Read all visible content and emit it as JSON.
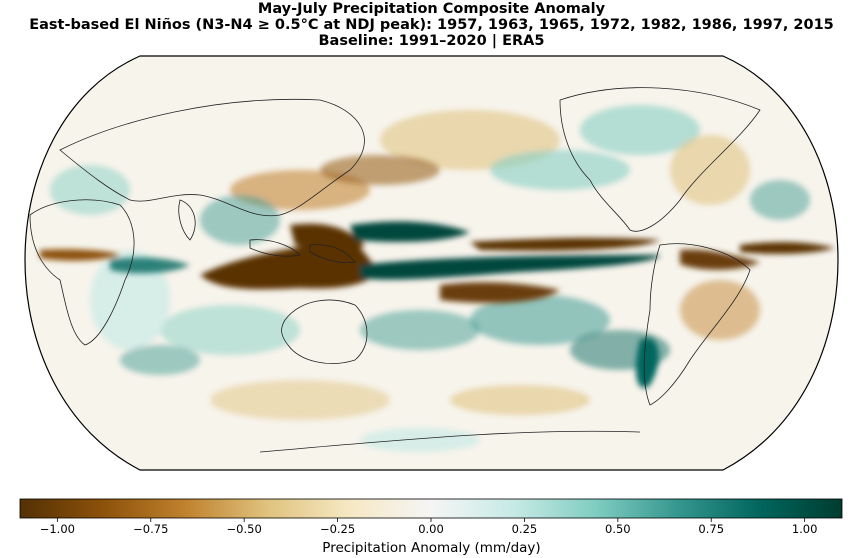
{
  "title": {
    "line1": "May-July Precipitation Composite Anomaly",
    "line2": "East-based El Niños (N3-N4 ≥ 0.5°C at NDJ peak): 1957, 1963, 1965, 1972, 1982, 1986, 1997, 2015",
    "line3": "Baseline: 1991–2020 | ERA5"
  },
  "colorbar": {
    "label": "Precipitation Anomaly (mm/day)",
    "range": [
      -1.1,
      1.1
    ],
    "ticks": [
      "−1.00",
      "−0.75",
      "−0.50",
      "−0.25",
      "0.00",
      "0.25",
      "0.50",
      "0.75",
      "1.00"
    ],
    "tick_values": [
      -1.0,
      -0.75,
      -0.5,
      -0.25,
      0.0,
      0.25,
      0.5,
      0.75,
      1.0
    ],
    "colormap": [
      "#543005",
      "#8c510a",
      "#bf812d",
      "#dfc27d",
      "#f6e8c3",
      "#f5f5f5",
      "#c7eae5",
      "#80cdc1",
      "#35978f",
      "#01665e",
      "#003c30"
    ]
  },
  "map": {
    "projection": "Robinson",
    "central_longitude": 180,
    "dry_color": "#5a3306",
    "wet_color": "#01473e",
    "coastline_color": "#222222",
    "ocean_color": "#ffffff"
  }
}
